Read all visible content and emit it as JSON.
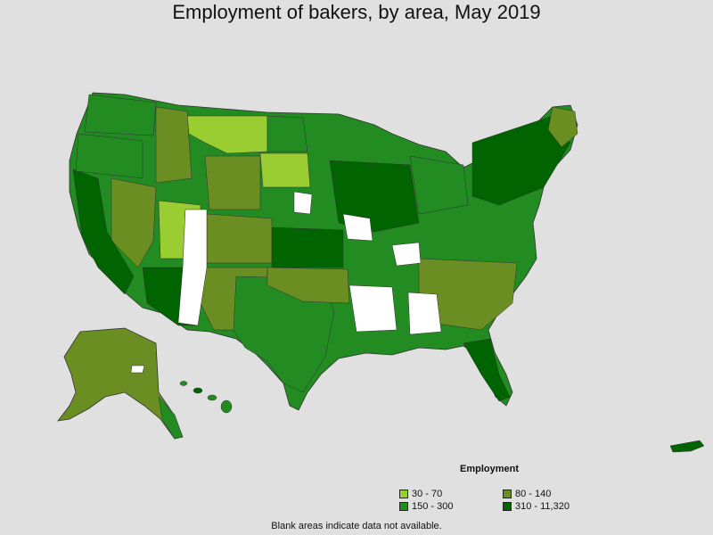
{
  "title": "Employment of bakers, by area, May 2019",
  "legend": {
    "title": "Employment",
    "items": [
      {
        "label": "30 - 70",
        "color": "#9acd32"
      },
      {
        "label": "80 - 140",
        "color": "#6b8e23"
      },
      {
        "label": "150 - 300",
        "color": "#228b22"
      },
      {
        "label": "310 - 11,320",
        "color": "#006400"
      }
    ]
  },
  "footnote": "Blank areas indicate data not available.",
  "colors": {
    "background": "#e0e0e0",
    "no_data": "#ffffff",
    "border": "#333333"
  }
}
